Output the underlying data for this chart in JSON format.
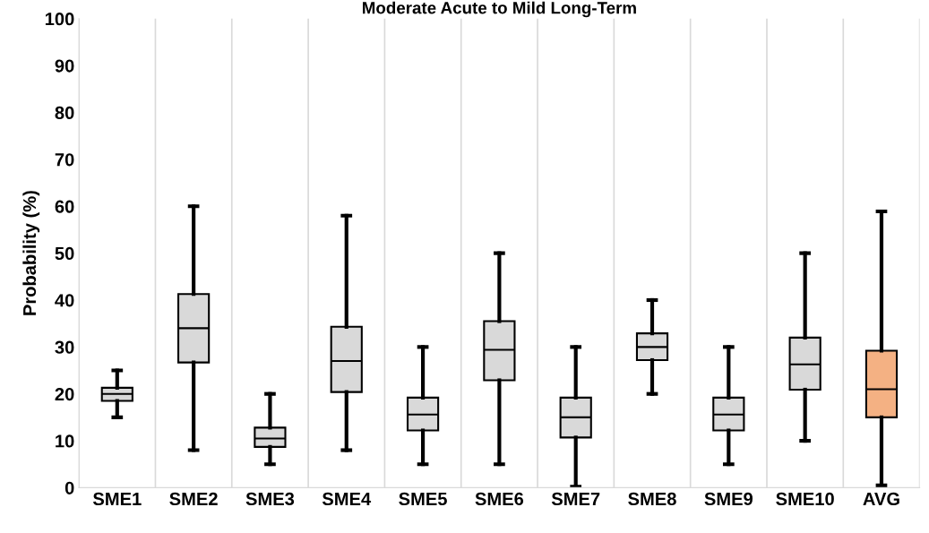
{
  "chart_data": {
    "type": "box",
    "title": "Moderate Acute to Mild Long-Term",
    "ylabel": "Probability (%)",
    "categories": [
      "SME1",
      "SME2",
      "SME3",
      "SME4",
      "SME5",
      "SME6",
      "SME7",
      "SME8",
      "SME9",
      "SME10",
      "AVG"
    ],
    "colors": [
      "#d9d9d9",
      "#d9d9d9",
      "#d9d9d9",
      "#d9d9d9",
      "#d9d9d9",
      "#d9d9d9",
      "#d9d9d9",
      "#d9d9d9",
      "#d9d9d9",
      "#d9d9d9",
      "#f4b183"
    ],
    "boxes": [
      {
        "low": 15,
        "q1": 18.5,
        "median": 20,
        "q3": 21.3,
        "high": 25
      },
      {
        "low": 8,
        "q1": 26.7,
        "median": 34,
        "q3": 41.3,
        "high": 60
      },
      {
        "low": 5,
        "q1": 8.7,
        "median": 10.5,
        "q3": 12.8,
        "high": 20
      },
      {
        "low": 8,
        "q1": 20.4,
        "median": 27,
        "q3": 34.3,
        "high": 58
      },
      {
        "low": 5,
        "q1": 12.2,
        "median": 15.6,
        "q3": 19.2,
        "high": 30
      },
      {
        "low": 5,
        "q1": 22.9,
        "median": 29.4,
        "q3": 35.5,
        "high": 50
      },
      {
        "low": 0.2,
        "q1": 10.7,
        "median": 15,
        "q3": 19.2,
        "high": 30
      },
      {
        "low": 20,
        "q1": 27.2,
        "median": 30,
        "q3": 32.9,
        "high": 40
      },
      {
        "low": 5,
        "q1": 12.2,
        "median": 15.6,
        "q3": 19.2,
        "high": 30
      },
      {
        "low": 10,
        "q1": 20.9,
        "median": 26.3,
        "q3": 32,
        "high": 50
      },
      {
        "low": 0.5,
        "q1": 15,
        "median": 21,
        "q3": 29.2,
        "high": 58.9
      }
    ],
    "ylim": [
      0,
      100
    ],
    "yticks": [
      0,
      10,
      20,
      30,
      40,
      50,
      60,
      70,
      80,
      90,
      100
    ],
    "grid": "x"
  }
}
